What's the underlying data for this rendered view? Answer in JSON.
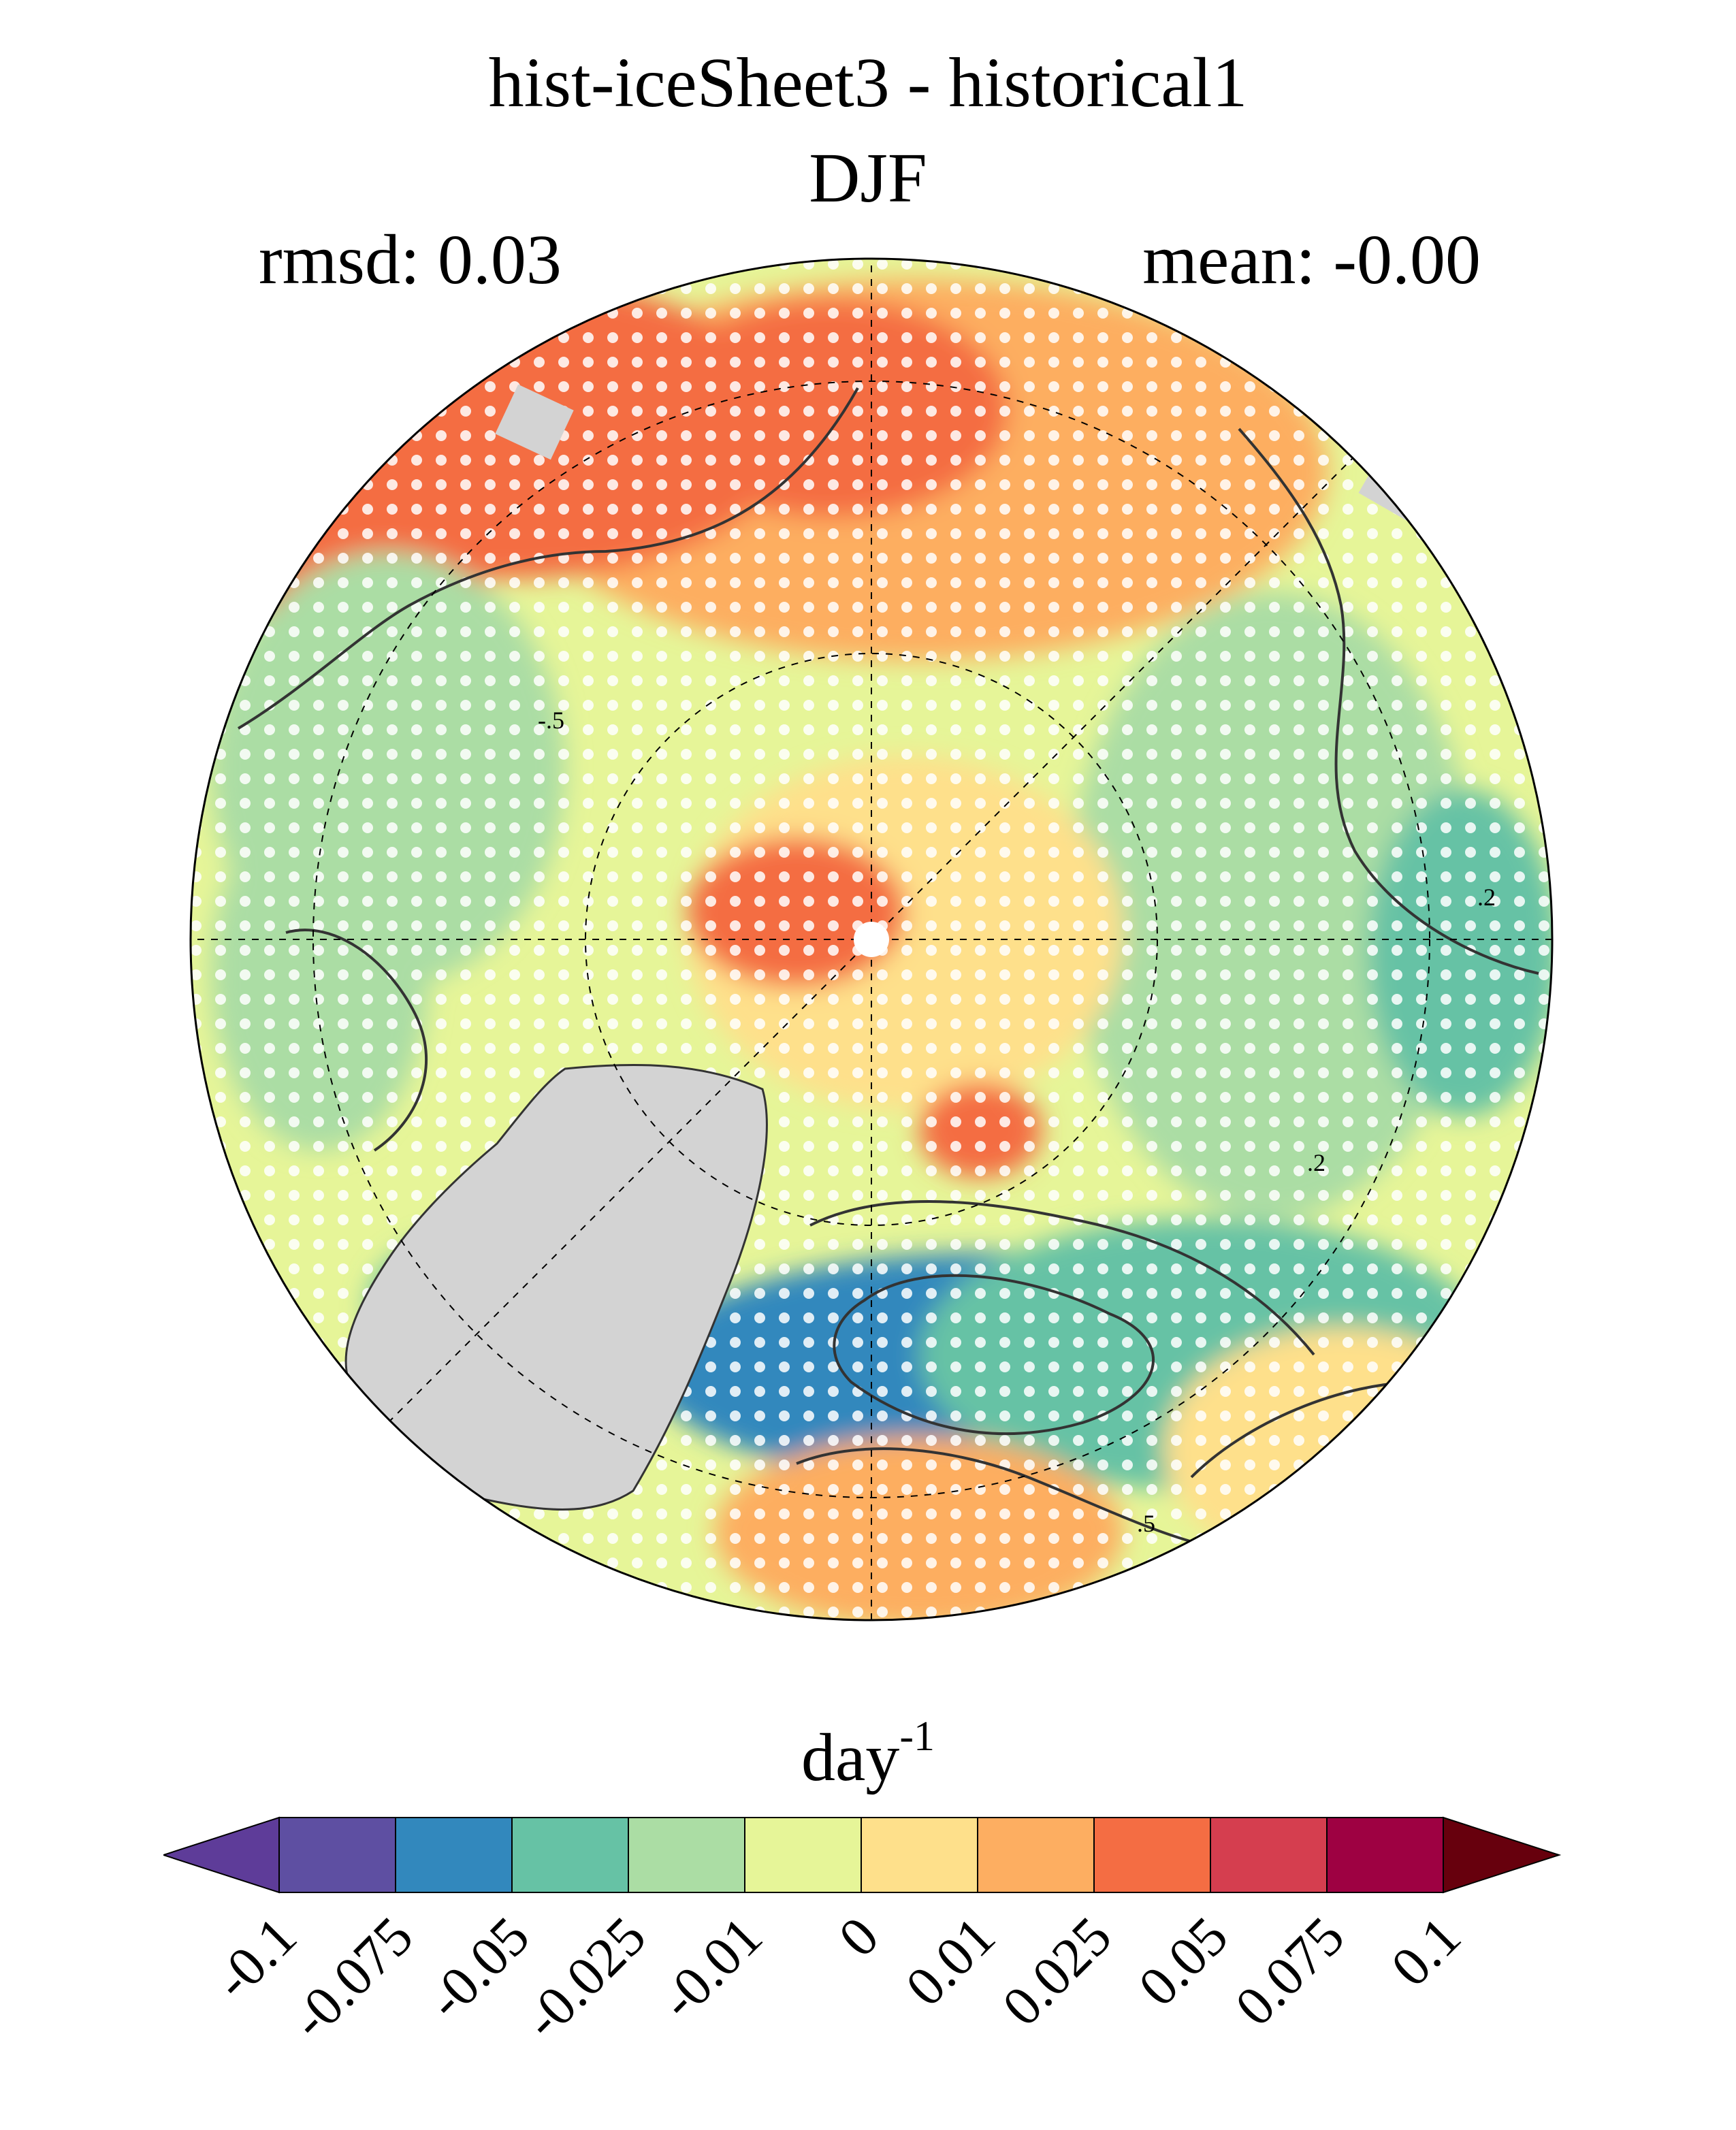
{
  "title": "hist-iceSheet3 - historical1",
  "subtitle": "DJF",
  "stats": {
    "rmsd": "rmsd: 0.03",
    "mean": "mean: -0.00"
  },
  "colorbar": {
    "unit_base": "day",
    "unit_exp": "-1",
    "ticks": [
      "-0.1",
      "-0.075",
      "-0.05",
      "-0.025",
      "-0.01",
      "0",
      "0.01",
      "0.025",
      "0.05",
      "0.075",
      "0.1"
    ],
    "colors": [
      "#5e3c99",
      "#5e4fa2",
      "#3288bd",
      "#66c2a5",
      "#abdda4",
      "#e6f598",
      "#fee08b",
      "#fdae61",
      "#f46d43",
      "#d53e4f",
      "#9e0142",
      "#67000d"
    ]
  },
  "map": {
    "projection": "north polar stereographic",
    "land_mask_color": "#d3d3d3",
    "stippling_color": "#ffffff",
    "contour_color": "#333333",
    "contour_labels": [
      "-.5",
      ".5",
      ".2",
      ".2"
    ]
  }
}
